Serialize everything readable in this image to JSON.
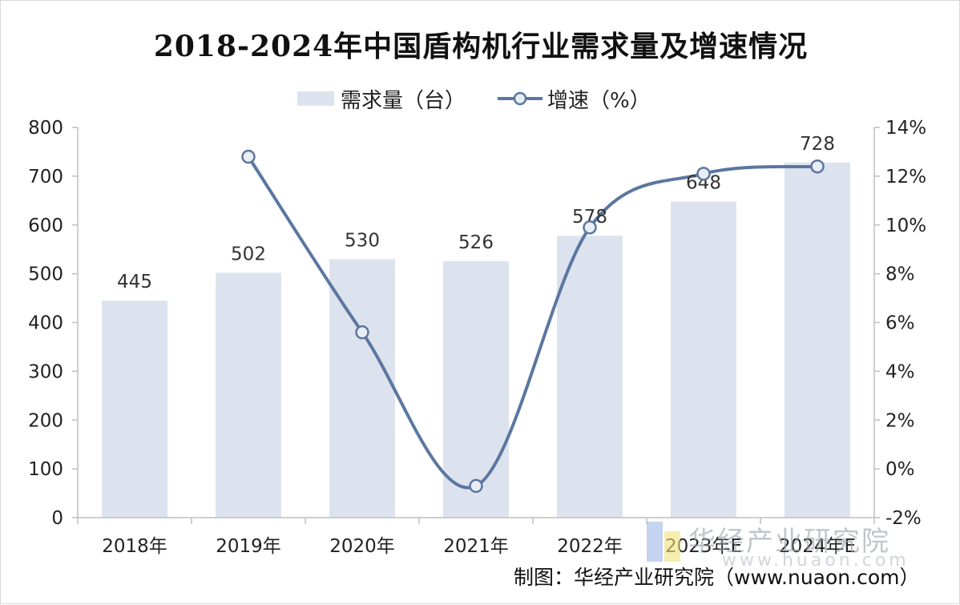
{
  "title": "2018-2024年中国盾构机行业需求量及增速情况",
  "legend": {
    "bar_label": "需求量（台）",
    "line_label": "增速（%）"
  },
  "source": "制图：华经产业研究院（www.nuaon.com）",
  "watermark": {
    "text": "华经产业研究院",
    "url": "www.huaon.com"
  },
  "colors": {
    "bar": "#dde3ee",
    "line": "#5b77a1",
    "marker_fill": "#e9edf4",
    "axis": "#bfbfbf"
  },
  "chart_data": {
    "type": "bar",
    "title": "2018-2024年中国盾构机行业需求量及增速情况",
    "categories": [
      "2018年",
      "2019年",
      "2020年",
      "2021年",
      "2022年",
      "2023年E",
      "2024年E"
    ],
    "series": [
      {
        "name": "需求量（台）",
        "type": "bar",
        "axis": "left",
        "values": [
          445,
          502,
          530,
          526,
          578,
          648,
          728
        ],
        "data_labels": [
          "445",
          "502",
          "530",
          "526",
          "578",
          "648",
          "728"
        ]
      },
      {
        "name": "增速（%）",
        "type": "line",
        "axis": "right",
        "values": [
          null,
          12.8,
          5.6,
          -0.7,
          9.9,
          12.1,
          12.4
        ]
      }
    ],
    "y_left": {
      "lim": [
        0,
        800
      ],
      "ticks": [
        0,
        100,
        200,
        300,
        400,
        500,
        600,
        700,
        800
      ],
      "tick_labels": [
        "0",
        "100",
        "200",
        "300",
        "400",
        "500",
        "600",
        "700",
        "800"
      ]
    },
    "y_right": {
      "lim": [
        -2,
        14
      ],
      "ticks": [
        -2,
        0,
        2,
        4,
        6,
        8,
        10,
        12,
        14
      ],
      "tick_labels": [
        "-2%",
        "0%",
        "2%",
        "4%",
        "6%",
        "8%",
        "10%",
        "12%",
        "14%"
      ]
    },
    "grid": false,
    "legend_position": "top-center"
  }
}
